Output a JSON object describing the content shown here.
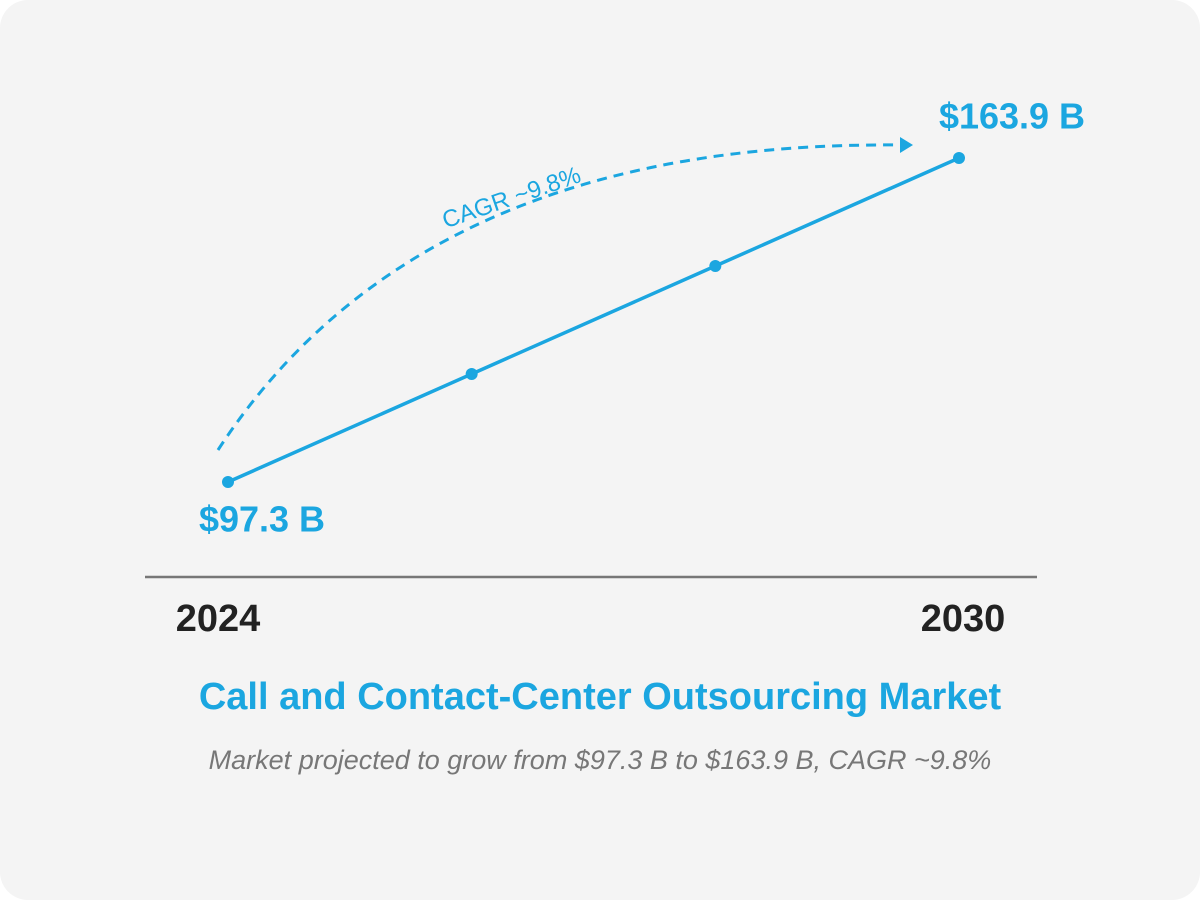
{
  "chart_data": {
    "type": "line",
    "title": "Call and Contact-Center Outsourcing Market",
    "subtitle": "Market projected to grow from $97.3 B to $163.9 B, CAGR ~9.8%",
    "annotation": "CAGR ~9.8%",
    "categories": [
      "2024",
      null,
      null,
      "2030"
    ],
    "series": [
      {
        "color": "#1ba6e0",
        "values": [
          97.3,
          119.5,
          141.7,
          163.9
        ],
        "value_labels": [
          "$97.3 B",
          null,
          null,
          "$163.9 B"
        ]
      }
    ]
  }
}
